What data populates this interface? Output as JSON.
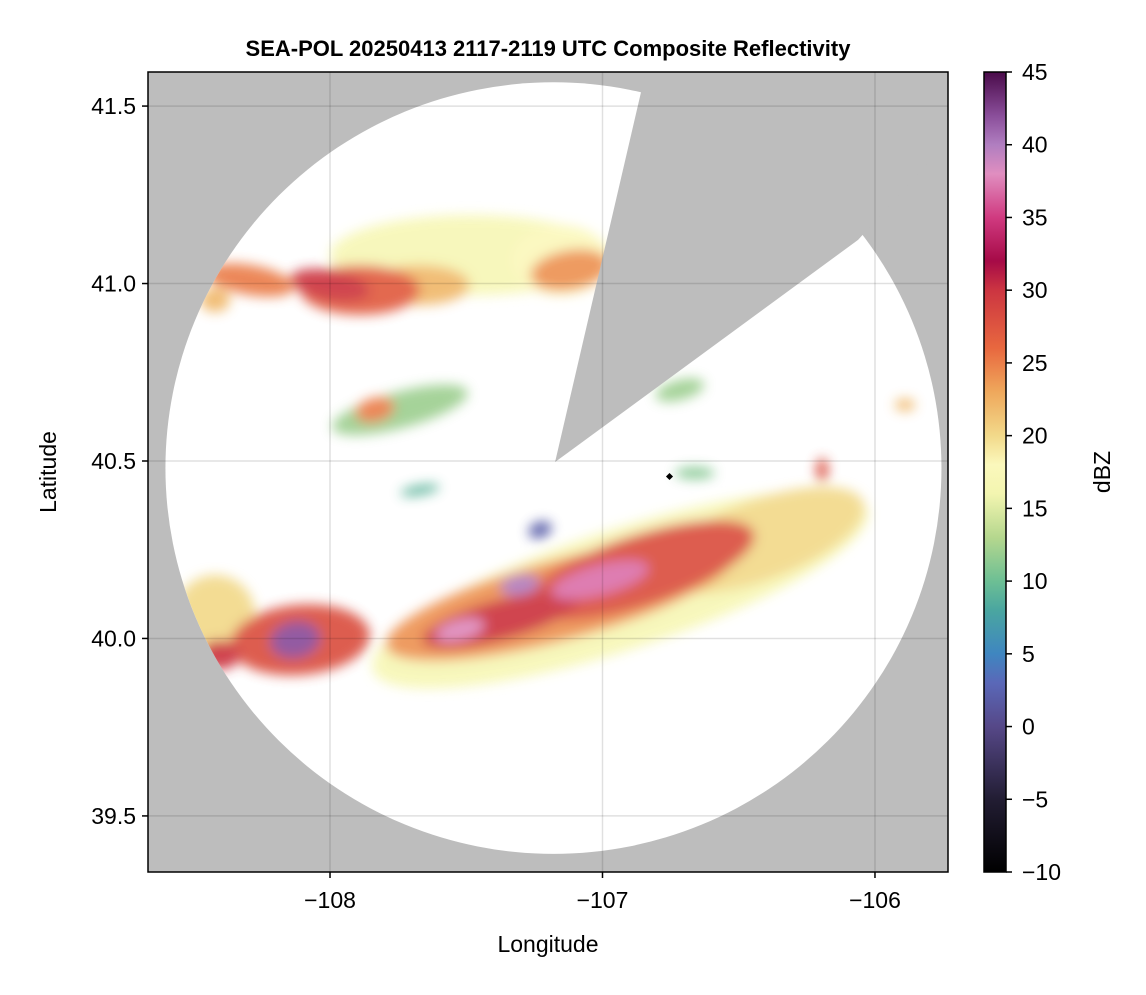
{
  "chart_data": {
    "type": "heatmap",
    "title": "SEA-POL 20250413 2117-2119 UTC Composite Reflectivity",
    "xlabel": "Longitude",
    "ylabel": "Latitude",
    "xlim": [
      -108.668,
      -105.732
    ],
    "ylim": [
      39.342,
      41.596
    ],
    "xticks": [
      -108,
      -107,
      -106
    ],
    "xtick_labels": [
      "−108",
      "−107",
      "−106"
    ],
    "yticks": [
      39.5,
      40.0,
      40.5,
      41.0,
      41.5
    ],
    "ytick_labels": [
      "39.5",
      "40.0",
      "40.5",
      "41.0",
      "41.5"
    ],
    "grid": true,
    "background_color": "#bdbdbd",
    "radar": {
      "center": [
        -107.18,
        40.48
      ],
      "range_lon": 1.424,
      "range_lat": 1.087,
      "blocked_sector": [
        [
          -107.174,
          40.497
        ],
        [
          -106.81,
          41.7
        ],
        [
          -105.5,
          41.7
        ],
        [
          -105.5,
          41.6
        ],
        [
          -106.062,
          41.123
        ]
      ]
    },
    "colorbar": {
      "label": "dBZ",
      "range": [
        -10,
        45
      ],
      "ticks": [
        -10,
        -5,
        0,
        5,
        10,
        15,
        20,
        25,
        30,
        35,
        40,
        45
      ],
      "tick_labels": [
        "−10",
        "−5",
        "0",
        "5",
        "10",
        "15",
        "20",
        "25",
        "30",
        "35",
        "40",
        "45"
      ],
      "stops": [
        [
          -10,
          "#000000"
        ],
        [
          -5,
          "#221d33"
        ],
        [
          0,
          "#564888"
        ],
        [
          3,
          "#5a68b8"
        ],
        [
          5,
          "#3f86c0"
        ],
        [
          8,
          "#4aa6a0"
        ],
        [
          10,
          "#6dbf94"
        ],
        [
          13,
          "#b5d78e"
        ],
        [
          16,
          "#f3f5b0"
        ],
        [
          18,
          "#fbf8bc"
        ],
        [
          20,
          "#f2d98a"
        ],
        [
          23,
          "#efa85c"
        ],
        [
          26,
          "#e8683f"
        ],
        [
          30,
          "#cc3541"
        ],
        [
          32,
          "#a60a47"
        ],
        [
          35,
          "#d03a80"
        ],
        [
          38,
          "#e08ec0"
        ],
        [
          40,
          "#b07ec0"
        ],
        [
          42,
          "#8a4e9a"
        ],
        [
          45,
          "#4a0b4a"
        ]
      ]
    },
    "echoes": [
      {
        "lon": -107.486,
        "lat": 41.08,
        "rlon": 0.514,
        "rlat": 0.113,
        "dbz": 17,
        "tilt": 0
      },
      {
        "lon": -107.156,
        "lat": 41.066,
        "rlon": 0.183,
        "rlat": 0.099,
        "dbz": 18,
        "tilt": 0
      },
      {
        "lon": -107.67,
        "lat": 40.996,
        "rlon": 0.183,
        "rlat": 0.056,
        "dbz": 22,
        "tilt": 0
      },
      {
        "lon": -107.119,
        "lat": 41.038,
        "rlon": 0.147,
        "rlat": 0.056,
        "dbz": 24,
        "tilt": -10
      },
      {
        "lon": -107.89,
        "lat": 40.982,
        "rlon": 0.22,
        "rlat": 0.07,
        "dbz": 27,
        "tilt": 0
      },
      {
        "lon": -108.0,
        "lat": 40.996,
        "rlon": 0.147,
        "rlat": 0.042,
        "dbz": 30,
        "tilt": 10
      },
      {
        "lon": -108.294,
        "lat": 41.01,
        "rlon": 0.165,
        "rlat": 0.042,
        "dbz": 25,
        "tilt": 10
      },
      {
        "lon": -108.422,
        "lat": 40.954,
        "rlon": 0.055,
        "rlat": 0.034,
        "dbz": 22,
        "tilt": 0
      },
      {
        "lon": -107.743,
        "lat": 40.644,
        "rlon": 0.257,
        "rlat": 0.051,
        "dbz": 12,
        "tilt": -15
      },
      {
        "lon": -107.835,
        "lat": 40.644,
        "rlon": 0.073,
        "rlat": 0.034,
        "dbz": 25,
        "tilt": -15
      },
      {
        "lon": -106.716,
        "lat": 40.7,
        "rlon": 0.092,
        "rlat": 0.028,
        "dbz": 12,
        "tilt": -15
      },
      {
        "lon": -106.661,
        "lat": 40.466,
        "rlon": 0.073,
        "rlat": 0.017,
        "dbz": 11,
        "tilt": 0
      },
      {
        "lon": -106.194,
        "lat": 40.475,
        "rlon": 0.022,
        "rlat": 0.034,
        "dbz": 28,
        "tilt": 0
      },
      {
        "lon": -105.89,
        "lat": 40.658,
        "rlon": 0.037,
        "rlat": 0.017,
        "dbz": 22,
        "tilt": 0
      },
      {
        "lon": -107.67,
        "lat": 40.418,
        "rlon": 0.073,
        "rlat": 0.014,
        "dbz": 9,
        "tilt": -10
      },
      {
        "lon": -107.229,
        "lat": 40.306,
        "rlon": 0.044,
        "rlat": 0.023,
        "dbz": 2,
        "tilt": -20
      },
      {
        "lon": -106.936,
        "lat": 40.137,
        "rlon": 0.954,
        "rlat": 0.169,
        "dbz": 17,
        "tilt": -18
      },
      {
        "lon": -106.422,
        "lat": 40.277,
        "rlon": 0.404,
        "rlat": 0.113,
        "dbz": 20,
        "tilt": -20
      },
      {
        "lon": -107.156,
        "lat": 40.108,
        "rlon": 0.661,
        "rlat": 0.113,
        "dbz": 24,
        "tilt": -15
      },
      {
        "lon": -106.862,
        "lat": 40.193,
        "rlon": 0.44,
        "rlat": 0.099,
        "dbz": 28,
        "tilt": -18
      },
      {
        "lon": -107.376,
        "lat": 40.052,
        "rlon": 0.294,
        "rlat": 0.056,
        "dbz": 30,
        "tilt": -15
      },
      {
        "lon": -107.009,
        "lat": 40.165,
        "rlon": 0.183,
        "rlat": 0.042,
        "dbz": 37,
        "tilt": -15
      },
      {
        "lon": -107.303,
        "lat": 40.151,
        "rlon": 0.073,
        "rlat": 0.028,
        "dbz": 40,
        "tilt": -10
      },
      {
        "lon": -107.523,
        "lat": 40.024,
        "rlon": 0.092,
        "rlat": 0.028,
        "dbz": 38,
        "tilt": -15
      },
      {
        "lon": -108.422,
        "lat": 40.066,
        "rlon": 0.147,
        "rlat": 0.113,
        "dbz": 20,
        "tilt": 0
      },
      {
        "lon": -108.11,
        "lat": 39.996,
        "rlon": 0.257,
        "rlat": 0.099,
        "dbz": 28,
        "tilt": -5
      },
      {
        "lon": -108.404,
        "lat": 39.954,
        "rlon": 0.073,
        "rlat": 0.042,
        "dbz": 30,
        "tilt": 0
      },
      {
        "lon": -108.128,
        "lat": 39.996,
        "rlon": 0.092,
        "rlat": 0.051,
        "dbz": 42,
        "tilt": -10
      }
    ]
  }
}
